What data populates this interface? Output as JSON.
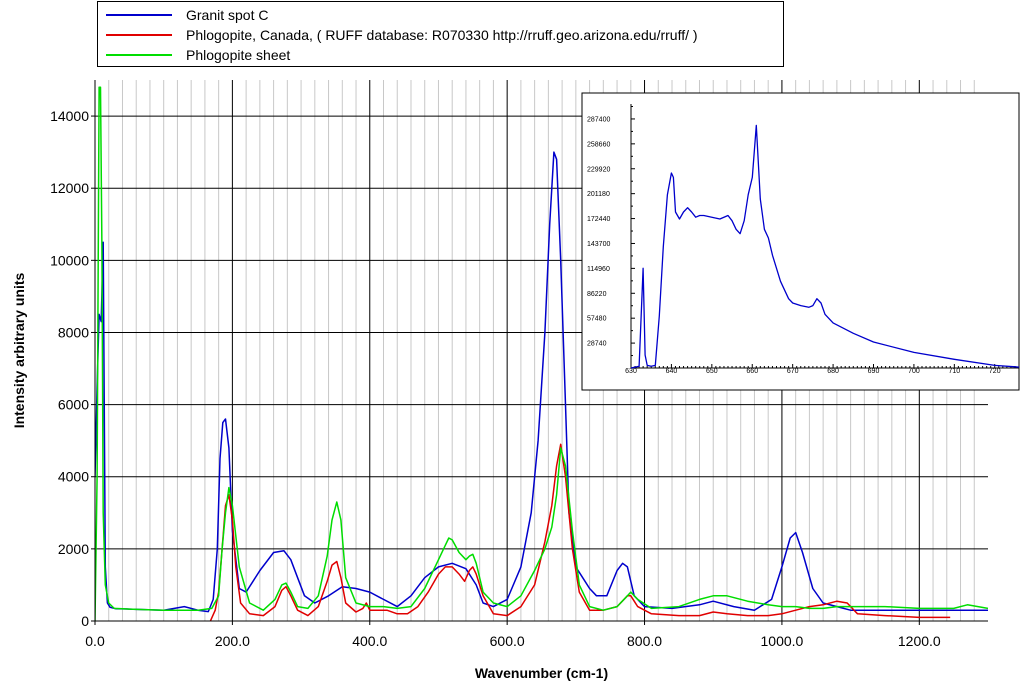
{
  "legend": {
    "items": [
      {
        "label": "Granit spot C",
        "color": "#0000cc"
      },
      {
        "label": "Phlogopite, Canada, ( RUFF database: R070330  http://rruff.geo.arizona.edu/rruff/ )",
        "color": "#e00000"
      },
      {
        "label": "Phlogopite sheet",
        "color": "#00dd00"
      }
    ]
  },
  "chart_data": [
    {
      "type": "line",
      "title": "",
      "xlabel": "Wavenumber (cm-1)",
      "ylabel": "Intensity arbitrary units",
      "xlim": [
        0,
        1300
      ],
      "ylim": [
        0,
        15000
      ],
      "xticks": [
        0,
        200,
        400,
        600,
        800,
        1000,
        1200
      ],
      "xtick_labels": [
        "0.0",
        "200.0",
        "400.0",
        "600.0",
        "800.0",
        "1000.0",
        "1200.0"
      ],
      "yticks": [
        0,
        2000,
        4000,
        6000,
        8000,
        10000,
        12000,
        14000
      ],
      "ytick_labels": [
        "0",
        "2000",
        "4000",
        "6000",
        "8000",
        "10000",
        "12000",
        "14000"
      ],
      "grid": true,
      "legend_position": "top",
      "series": [
        {
          "name": "Granit spot C",
          "color": "#0000cc",
          "x": [
            0,
            3,
            6,
            9,
            12,
            15,
            18,
            22,
            30,
            50,
            100,
            130,
            150,
            165,
            172,
            178,
            182,
            186,
            190,
            195,
            200,
            210,
            220,
            240,
            260,
            275,
            285,
            295,
            305,
            320,
            340,
            360,
            380,
            400,
            420,
            440,
            460,
            480,
            500,
            520,
            540,
            555,
            565,
            580,
            600,
            620,
            635,
            645,
            655,
            662,
            668,
            672,
            678,
            685,
            690,
            700,
            710,
            720,
            730,
            745,
            760,
            768,
            775,
            785,
            800,
            840,
            880,
            900,
            930,
            960,
            985,
            1000,
            1012,
            1020,
            1030,
            1045,
            1060,
            1080,
            1100,
            1150,
            1200,
            1250,
            1300
          ],
          "y": [
            4000,
            6500,
            8500,
            8300,
            10500,
            1500,
            500,
            380,
            340,
            330,
            300,
            400,
            300,
            260,
            600,
            2000,
            4500,
            5500,
            5600,
            4800,
            2500,
            900,
            800,
            1400,
            1900,
            1950,
            1700,
            1200,
            700,
            500,
            700,
            950,
            900,
            800,
            600,
            400,
            700,
            1200,
            1500,
            1600,
            1450,
            1000,
            500,
            400,
            600,
            1500,
            3000,
            5000,
            8000,
            11000,
            13000,
            12800,
            10000,
            6000,
            3000,
            1500,
            1200,
            900,
            700,
            700,
            1400,
            1600,
            1500,
            700,
            400,
            350,
            450,
            550,
            400,
            300,
            600,
            1500,
            2300,
            2450,
            1900,
            900,
            500,
            400,
            300,
            300,
            300,
            300,
            300
          ]
        },
        {
          "name": "Phlogopite, Canada, ( RUFF database: R070330  http://rruff.geo.arizona.edu/rruff/ )",
          "color": "#e00000",
          "x": [
            168,
            175,
            180,
            185,
            190,
            195,
            200,
            205,
            212,
            225,
            245,
            262,
            272,
            278,
            285,
            295,
            310,
            325,
            338,
            345,
            352,
            358,
            365,
            380,
            390,
            395,
            400,
            410,
            425,
            440,
            455,
            470,
            485,
            500,
            510,
            520,
            530,
            538,
            545,
            550,
            555,
            565,
            580,
            600,
            620,
            640,
            655,
            665,
            672,
            678,
            685,
            695,
            705,
            720,
            740,
            760,
            775,
            780,
            790,
            810,
            850,
            880,
            900,
            920,
            950,
            980,
            1000,
            1020,
            1040,
            1060,
            1080,
            1095,
            1110,
            1150,
            1200,
            1245
          ],
          "y": [
            0,
            300,
            800,
            2000,
            3200,
            3500,
            2800,
            1500,
            500,
            200,
            150,
            400,
            850,
            950,
            700,
            300,
            150,
            400,
            1100,
            1550,
            1650,
            1200,
            500,
            250,
            350,
            500,
            300,
            300,
            300,
            200,
            200,
            400,
            800,
            1300,
            1500,
            1500,
            1300,
            1100,
            1400,
            1500,
            1300,
            700,
            200,
            150,
            400,
            1000,
            2200,
            3200,
            4300,
            4900,
            4000,
            2000,
            800,
            300,
            300,
            400,
            700,
            700,
            400,
            200,
            150,
            150,
            250,
            200,
            150,
            150,
            200,
            300,
            400,
            450,
            550,
            500,
            200,
            150,
            100,
            100
          ]
        },
        {
          "name": "Phlogopite sheet",
          "color": "#00dd00",
          "x": [
            0,
            3,
            6,
            8,
            10,
            12,
            15,
            20,
            28,
            50,
            100,
            150,
            170,
            180,
            185,
            190,
            195,
            200,
            210,
            225,
            245,
            262,
            272,
            278,
            285,
            295,
            310,
            325,
            338,
            345,
            352,
            358,
            365,
            380,
            400,
            420,
            440,
            460,
            480,
            500,
            510,
            515,
            520,
            530,
            540,
            545,
            550,
            555,
            565,
            580,
            600,
            620,
            640,
            655,
            665,
            672,
            678,
            685,
            695,
            705,
            720,
            740,
            760,
            775,
            780,
            790,
            810,
            850,
            880,
            900,
            920,
            950,
            980,
            1000,
            1020,
            1040,
            1060,
            1080,
            1100,
            1150,
            1200,
            1250,
            1270,
            1300
          ],
          "y": [
            0,
            4000,
            14800,
            14800,
            10400,
            3000,
            1000,
            500,
            350,
            330,
            300,
            300,
            350,
            700,
            2000,
            3000,
            3700,
            3200,
            1500,
            500,
            300,
            600,
            1000,
            1050,
            800,
            400,
            350,
            700,
            1800,
            2800,
            3300,
            2800,
            1200,
            500,
            400,
            400,
            350,
            400,
            900,
            1700,
            2100,
            2300,
            2250,
            1900,
            1700,
            1800,
            1850,
            1600,
            800,
            500,
            400,
            700,
            1400,
            2000,
            2600,
            3500,
            4800,
            4300,
            2500,
            1000,
            400,
            300,
            400,
            700,
            800,
            600,
            350,
            400,
            600,
            700,
            700,
            550,
            450,
            400,
            400,
            350,
            350,
            400,
            400,
            400,
            350,
            350,
            450,
            350
          ]
        }
      ]
    },
    {
      "type": "line",
      "title": "",
      "xlabel": "",
      "ylabel": "",
      "xlim": [
        630,
        726
      ],
      "ylim": [
        0,
        304650
      ],
      "xticks": [
        630,
        640,
        650,
        660,
        670,
        680,
        690,
        700,
        710,
        720
      ],
      "xtick_labels": [
        "630",
        "640",
        "650",
        "660",
        "670",
        "680",
        "690",
        "700",
        "710",
        "720"
      ],
      "yticks": [
        28740,
        57480,
        86220,
        114960,
        143700,
        172440,
        201180,
        229920,
        258660,
        287400
      ],
      "ytick_labels": [
        "28740",
        "57480",
        "86220",
        "114960",
        "143700",
        "172440",
        "201180",
        "229920",
        "258660",
        "287400"
      ],
      "grid": false,
      "series": [
        {
          "color": "#0000cc",
          "x": [
            630,
            632,
            633,
            633.5,
            634,
            635,
            636,
            637,
            638,
            639,
            640,
            640.5,
            641,
            642,
            643,
            644,
            645,
            646,
            647,
            648,
            650,
            652,
            654,
            655,
            656,
            657,
            658,
            659,
            660,
            661,
            662,
            663,
            664,
            665,
            667,
            669,
            670,
            672,
            674,
            675,
            676,
            677,
            678,
            680,
            685,
            690,
            700,
            710,
            720,
            726
          ],
          "y": [
            0,
            2000,
            115000,
            15000,
            3000,
            2000,
            3000,
            60000,
            140000,
            200000,
            225000,
            220000,
            180000,
            172000,
            180000,
            185000,
            180000,
            174000,
            176000,
            176000,
            174000,
            172000,
            176000,
            170000,
            160000,
            155000,
            170000,
            200000,
            220000,
            280000,
            195000,
            160000,
            150000,
            130000,
            100000,
            80000,
            75000,
            72000,
            70000,
            72000,
            80000,
            75000,
            62000,
            52000,
            40000,
            30000,
            18000,
            10000,
            3000,
            1000
          ]
        }
      ]
    }
  ]
}
